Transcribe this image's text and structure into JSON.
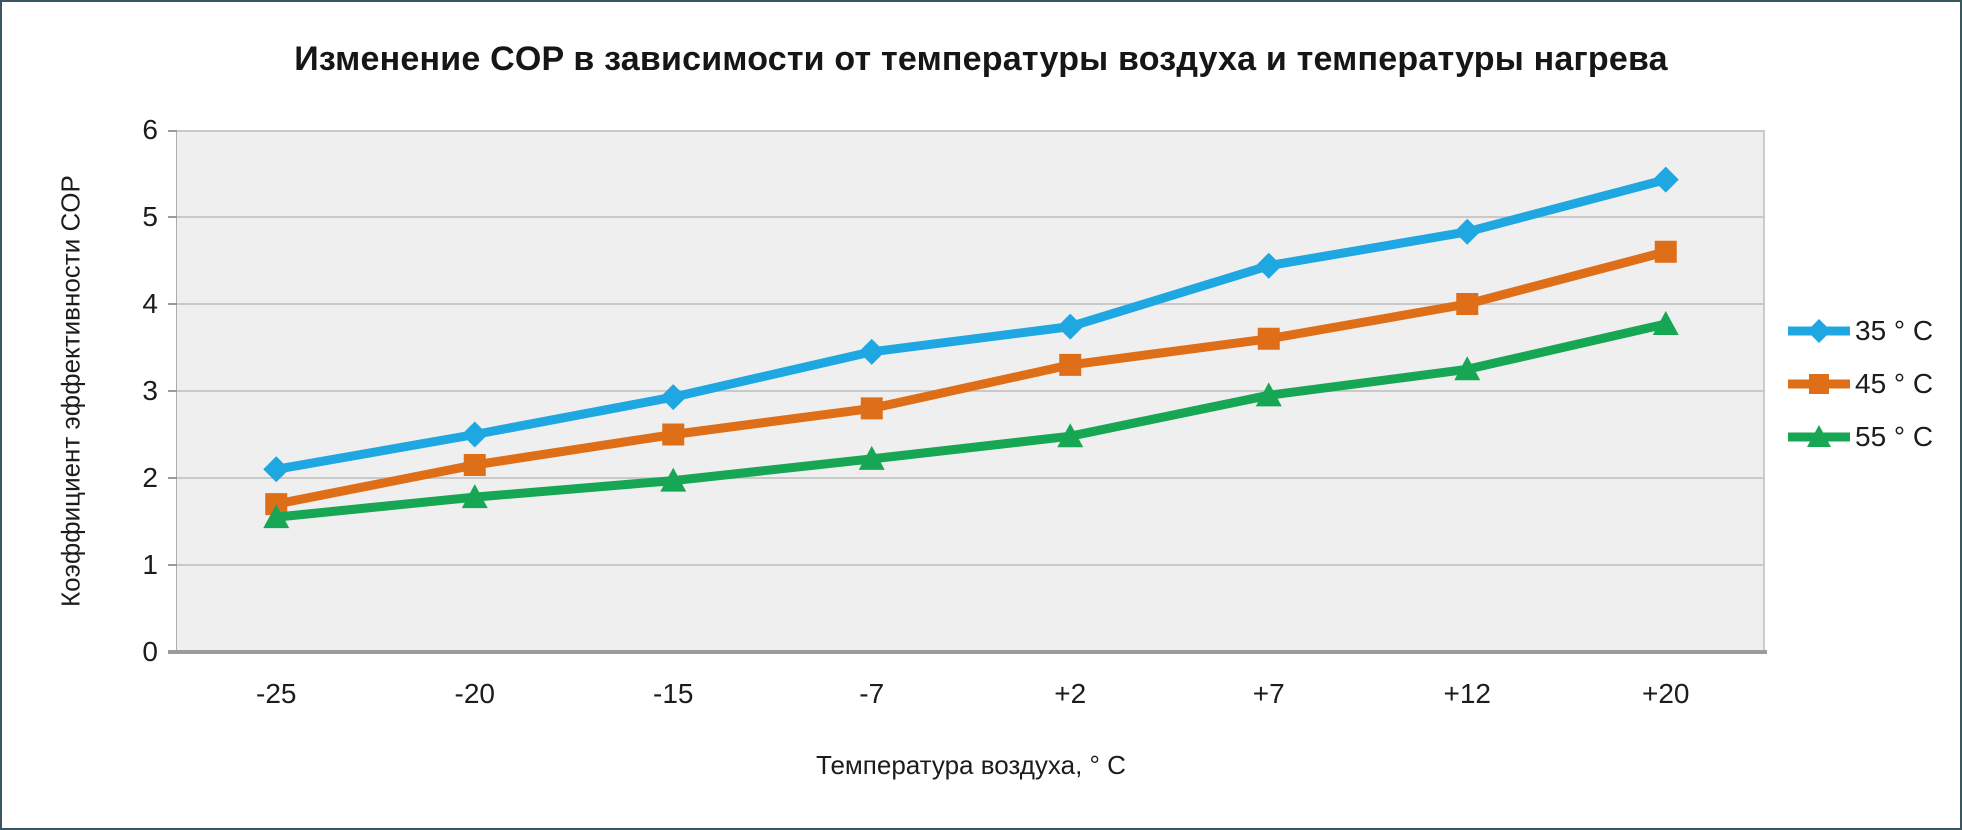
{
  "chart_data": {
    "type": "line",
    "title": "Изменение COP в зависимости от температуры воздуха и температуры нагрева",
    "xlabel": "Температура воздуха, ° C",
    "ylabel": "Коэффициент эффективности COP",
    "categories": [
      "-25",
      "-20",
      "-15",
      "-7",
      "+2",
      "+7",
      "+12",
      "+20"
    ],
    "ylim": [
      0,
      6
    ],
    "ytick_step": 1,
    "grid": true,
    "legend_position": "right",
    "series": [
      {
        "name": "35 ° C",
        "marker": "diamond",
        "color": "#1EA7E1",
        "values": [
          2.1,
          2.5,
          2.93,
          3.45,
          3.74,
          4.44,
          4.83,
          5.43
        ]
      },
      {
        "name": "45 ° C",
        "marker": "square",
        "color": "#DE6E17",
        "values": [
          1.7,
          2.15,
          2.5,
          2.8,
          3.3,
          3.6,
          4.0,
          4.6
        ]
      },
      {
        "name": "55 ° C",
        "marker": "triangle",
        "color": "#17A653",
        "values": [
          1.55,
          1.78,
          1.97,
          2.22,
          2.48,
          2.95,
          3.25,
          3.77
        ]
      }
    ],
    "style": {
      "frame_border": "#3A565E",
      "plot_bg": "#EFEFEF",
      "gridline": "#C9C9C9",
      "axis": "#9B9B9B",
      "text": "#1C1C1C"
    }
  }
}
